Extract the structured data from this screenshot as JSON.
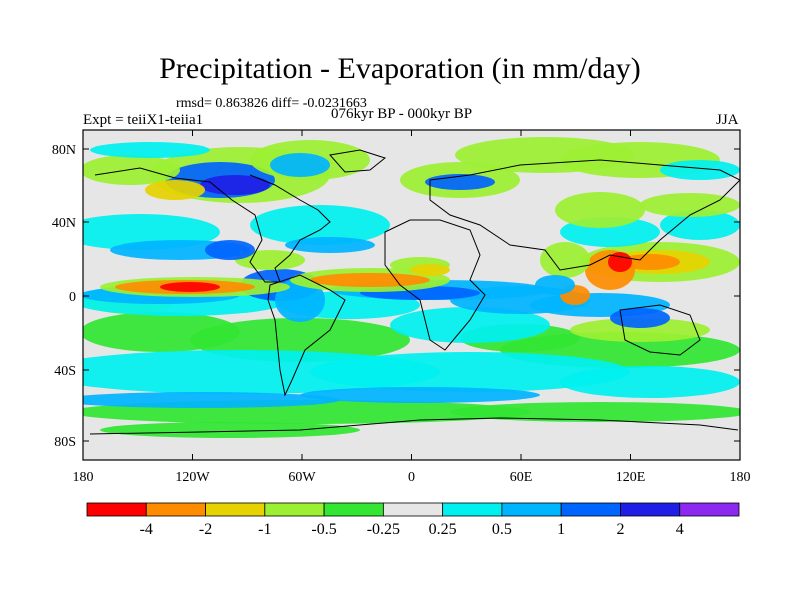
{
  "title": "Precipitation - Evaporation (in mm/day)",
  "stats_line": "rmsd= 0.863826 diff= -0.0231663",
  "experiment": "Expt = teiiX1-teiia1",
  "period": "076kyr BP - 000kyr BP",
  "season": "JJA",
  "map": {
    "lat_ticks": [
      "80N",
      "40N",
      "0",
      "40S",
      "80S"
    ],
    "lon_ticks": [
      "180",
      "120W",
      "60W",
      "0",
      "60E",
      "120E",
      "180"
    ]
  },
  "colorbar": {
    "labels": [
      "-4",
      "-2",
      "-1",
      "-0.5",
      "-0.25",
      "0.25",
      "0.5",
      "1",
      "2",
      "4"
    ],
    "colors": [
      "#ff0000",
      "#ff8c00",
      "#e6d200",
      "#9cf032",
      "#32e632",
      "#e6e6e6",
      "#00f0f0",
      "#00b4ff",
      "#0064ff",
      "#1e1ee6",
      "#8c28f0"
    ]
  },
  "palette": {
    "dry_strong": "#ff0000",
    "dry_mod": "#ff8c00",
    "dry_weak": "#e6d200",
    "dry_light": "#9cf032",
    "dry_min": "#32e632",
    "neutral": "#e6e6e6",
    "wet_min": "#00f0f0",
    "wet_light": "#00b4ff",
    "wet_mod": "#0064ff",
    "wet_strong": "#1e1ee6"
  }
}
